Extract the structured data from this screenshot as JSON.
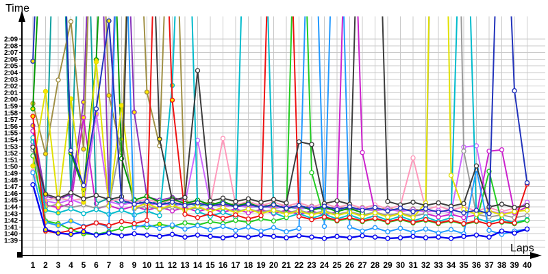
{
  "chart_data": {
    "type": "line",
    "title": "",
    "ylabel": "Time",
    "xlabel": "Laps",
    "grid": true,
    "legend": "none",
    "x_range": [
      1,
      40
    ],
    "y_axis_format": "m:ss",
    "y_ticks": [
      "2:09",
      "2:08",
      "2:07",
      "2:06",
      "2:05",
      "2:04",
      "2:03",
      "2:02",
      "2:01",
      "2:00",
      "1:59",
      "1:58",
      "1:57",
      "1:56",
      "1:55",
      "1:54",
      "1:53",
      "1:52",
      "1:51",
      "1:50",
      "1:49",
      "1:48",
      "1:47",
      "1:46",
      "1:45",
      "1:44",
      "1:43",
      "1:42",
      "1:41",
      "1:40",
      "1:39"
    ],
    "x_ticks": [
      1,
      2,
      3,
      4,
      5,
      6,
      7,
      8,
      9,
      10,
      11,
      12,
      13,
      14,
      15,
      16,
      17,
      18,
      19,
      20,
      21,
      22,
      23,
      24,
      25,
      26,
      27,
      28,
      29,
      30,
      31,
      32,
      33,
      34,
      35,
      36,
      37,
      38,
      39,
      40
    ],
    "marker_fill_normal": "#ffffff",
    "marker_fill_caution": "#ffe600",
    "grid_color": "#c8c8c8",
    "axis_color": "#000000",
    "series": [
      {
        "id": "s1",
        "color": "#11a0a0",
        "yellow_laps": [
          2,
          3,
          5
        ],
        "values": [
          113.7,
          104.7,
          170,
          105.7,
          168,
          104.5,
          105.3,
          104.4,
          105.1,
          104.3,
          104.9,
          104.2,
          104.7,
          104.1,
          104.5,
          104.0,
          104.3,
          103.9,
          104.1,
          103.8,
          104.0,
          103.7,
          103.9,
          103.6,
          103.8,
          103.5,
          103.7,
          103.4,
          null,
          null,
          null,
          null,
          null,
          null,
          null,
          null,
          null,
          null,
          null,
          null
        ]
      },
      {
        "id": "s2",
        "color": "#8833bb",
        "yellow_laps": [
          1,
          5,
          6,
          8,
          9
        ],
        "values": [
          116.1,
          105.6,
          105.1,
          105.9,
          119.6,
          172,
          105.3,
          168,
          118.1,
          105.5,
          105.0,
          105.4,
          104.9,
          null,
          null,
          null,
          null,
          null,
          null,
          null,
          null,
          null,
          null,
          null,
          null,
          null,
          null,
          null,
          null,
          null,
          null,
          null,
          null,
          null,
          null,
          null,
          null,
          null,
          null,
          null
        ]
      },
      {
        "id": "s3",
        "color": "#a09045",
        "yellow_laps": [
          1,
          2,
          5,
          7,
          10
        ],
        "values": [
          119.4,
          111.9,
          122.9,
          131.6,
          112.6,
          170,
          120.6,
          112.1,
          168,
          121.1,
          113.1,
          167,
          104.9,
          104.3,
          104.7,
          104.1,
          104.5,
          104.0,
          104.4,
          103.9,
          104.2,
          103.8,
          104.1,
          103.7,
          104.0,
          103.6,
          103.9,
          103.5,
          103.8,
          103.4,
          103.7,
          103.3,
          null,
          null,
          null,
          null,
          null,
          null,
          null,
          null
        ]
      },
      {
        "id": "s4",
        "color": "#ff99bb",
        "yellow_laps": [
          2,
          5,
          6
        ],
        "values": [
          109.3,
          105.0,
          105.4,
          104.9,
          105.3,
          117.7,
          104.8,
          105.2,
          104.7,
          105.1,
          104.6,
          105.0,
          104.5,
          104.9,
          104.4,
          114.2,
          104.3,
          104.8,
          104.2,
          104.7,
          104.1,
          104.6,
          104.0,
          104.5,
          103.9,
          104.4,
          103.8,
          104.3,
          103.7,
          104.2,
          111.3,
          103.6,
          104.1,
          103.5,
          104.0,
          103.4,
          103.9,
          103.3,
          103.8,
          104.3
        ]
      },
      {
        "id": "s5",
        "color": "#cc66ff",
        "yellow_laps": [
          2,
          3,
          6
        ],
        "values": [
          113.1,
          104.9,
          104.5,
          105.1,
          104.4,
          117.9,
          104.8,
          104.3,
          104.7,
          104.2,
          104.6,
          104.1,
          104.5,
          113.9,
          104.4,
          104.0,
          104.3,
          103.9,
          104.2,
          103.8,
          104.1,
          103.7,
          104.0,
          103.6,
          103.9,
          103.5,
          103.8,
          103.4,
          103.7,
          103.3,
          103.6,
          103.2,
          103.5,
          103.1,
          112.9,
          113.1,
          103.4,
          103.0,
          103.3,
          104.7
        ]
      },
      {
        "id": "s6",
        "color": "#cc22cc",
        "yellow_laps": [
          2,
          3,
          5
        ],
        "values": [
          115.3,
          104.3,
          103.9,
          104.5,
          117.3,
          103.7,
          104.2,
          103.6,
          104.1,
          103.5,
          104.0,
          103.4,
          103.9,
          103.3,
          103.8,
          103.2,
          103.7,
          103.1,
          103.6,
          103.0,
          103.5,
          102.9,
          103.4,
          102.8,
          103.3,
          170,
          112.1,
          103.2,
          102.7,
          103.1,
          102.6,
          103.0,
          102.5,
          102.9,
          102.4,
          102.8,
          112.3,
          112.5,
          103.1,
          104.0
        ]
      },
      {
        "id": "s7",
        "color": "#9a9a9a",
        "yellow_laps": [
          2,
          3,
          8
        ],
        "values": [
          112.5,
          104.0,
          104.4,
          103.9,
          104.3,
          103.8,
          104.2,
          114.1,
          103.7,
          104.1,
          103.6,
          104.0,
          103.5,
          103.9,
          103.4,
          103.8,
          103.3,
          103.7,
          103.2,
          103.6,
          103.1,
          103.5,
          103.0,
          103.4,
          102.9,
          103.3,
          102.8,
          103.2,
          102.7,
          103.1,
          102.6,
          103.0,
          212,
          215,
          112.3,
          102.9,
          102.5,
          102.8,
          102.4,
          102.7
        ]
      },
      {
        "id": "s8",
        "color": "#009900",
        "yellow_laps": [
          1,
          2,
          4,
          5,
          6
        ],
        "values": [
          118.6,
          158,
          171,
          112.0,
          106.6,
          125.9,
          168,
          111.2,
          105.0,
          105.6,
          104.7,
          105.2,
          104.5,
          105.0,
          104.3,
          104.8,
          104.1,
          104.6,
          103.9,
          104.4,
          103.7,
          104.2,
          103.5,
          104.0,
          103.3,
          103.8,
          103.1,
          null,
          null,
          null,
          null,
          null,
          null,
          null,
          null,
          null,
          null,
          null,
          null,
          null
        ]
      },
      {
        "id": "s9",
        "color": "#00bbcc",
        "yellow_laps": [
          2,
          3,
          12,
          13
        ],
        "values": [
          114.3,
          103.5,
          103.1,
          103.7,
          103.0,
          103.6,
          102.9,
          103.5,
          102.8,
          103.4,
          102.7,
          122.1,
          170,
          103.3,
          102.6,
          103.2,
          102.5,
          171,
          168,
          103.1,
          102.4,
          103.0,
          102.3,
          102.9,
          102.2,
          102.8,
          102.1,
          102.7,
          102.0,
          102.6,
          101.9,
          102.5,
          101.8,
          102.4,
          167,
          102.3,
          101.7,
          102.2,
          101.6,
          102.1
        ]
      },
      {
        "id": "s10",
        "color": "#22cc22",
        "yellow_laps": [
          2,
          3,
          4,
          5,
          6,
          7,
          11,
          12
        ],
        "values": [
          111.6,
          101.9,
          101.5,
          100.6,
          100.0,
          99.9,
          100.3,
          100.8,
          101.2,
          101.0,
          101.4,
          101.1,
          101.6,
          101.3,
          101.8,
          101.5,
          102.0,
          101.7,
          102.2,
          101.9,
          102.4,
          173,
          109.1,
          102.3,
          101.9,
          102.3,
          101.8,
          102.2,
          101.7,
          102.1,
          101.6,
          102.0,
          101.5,
          101.9,
          101.4,
          101.8,
          109.3,
          101.7,
          101.5,
          102.0
        ]
      },
      {
        "id": "s11",
        "color": "#e0e000",
        "yellow_laps": [
          1,
          2,
          4,
          5,
          6,
          8
        ],
        "values": [
          110.1,
          121.2,
          104.3,
          120.1,
          104.7,
          125.6,
          104.1,
          119.1,
          103.9,
          104.5,
          103.7,
          104.3,
          103.5,
          104.1,
          103.3,
          103.9,
          103.1,
          103.7,
          103.0,
          103.5,
          102.9,
          103.4,
          102.8,
          103.3,
          102.7,
          103.2,
          102.6,
          103.1,
          102.5,
          103.0,
          102.4,
          104.6,
          216,
          108.7,
          103.6,
          102.9,
          103.4,
          102.8,
          103.3,
          103.5
        ]
      },
      {
        "id": "s12",
        "color": "#2299ff",
        "yellow_laps": [
          2,
          3,
          4,
          5
        ],
        "values": [
          109.1,
          101.7,
          101.2,
          101.9,
          101.1,
          101.6,
          101.0,
          166,
          100.9,
          101.4,
          100.8,
          101.3,
          100.7,
          101.2,
          100.6,
          101.1,
          100.5,
          101.0,
          100.4,
          100.9,
          100.3,
          100.8,
          167,
          101.1,
          169,
          101.0,
          100.4,
          100.9,
          100.3,
          100.8,
          100.2,
          100.7,
          100.1,
          100.6,
          100.0,
          109.6,
          100.5,
          99.9,
          100.4,
          100.7
        ]
      },
      {
        "id": "s13",
        "color": "#ee1111",
        "yellow_laps": [
          1,
          2,
          3,
          11,
          12
        ],
        "values": [
          117.5,
          100.4,
          100.1,
          100.5,
          101.0,
          101.6,
          101.2,
          101.8,
          101.5,
          102.0,
          171,
          119.9,
          102.9,
          102.4,
          103.0,
          102.3,
          102.8,
          102.2,
          102.7,
          169,
          167,
          102.6,
          102.1,
          102.5,
          102.0,
          102.4,
          101.9,
          102.3,
          101.8,
          102.2,
          101.7,
          102.1,
          101.6,
          102.0,
          101.5,
          101.9,
          101.4,
          101.8,
          101.6,
          107.4
        ]
      },
      {
        "id": "s14",
        "color": "#3c3c3c",
        "yellow_laps": [
          2,
          9,
          10,
          11
        ],
        "values": [
          112.9,
          105.9,
          105.3,
          106.1,
          105.2,
          105.7,
          105.1,
          105.5,
          171,
          172,
          114.1,
          105.0,
          105.4,
          124.3,
          104.9,
          105.3,
          104.8,
          105.2,
          104.7,
          105.1,
          104.6,
          113.7,
          113.3,
          104.5,
          104.9,
          104.4,
          171,
          172,
          104.8,
          104.3,
          104.7,
          104.2,
          104.6,
          104.1,
          104.5,
          110.1,
          104.0,
          104.4,
          103.9,
          104.2
        ]
      },
      {
        "id": "s15",
        "color": "#2233bb",
        "yellow_laps": [
          1,
          2,
          3,
          7
        ],
        "values": [
          125.7,
          172,
          169,
          112.4,
          107.2,
          118.6,
          131.7,
          105.0,
          104.4,
          104.8,
          104.3,
          104.7,
          104.2,
          104.6,
          104.1,
          104.5,
          104.0,
          104.4,
          103.9,
          104.3,
          103.8,
          104.2,
          103.7,
          104.1,
          103.6,
          104.0,
          103.5,
          103.9,
          103.4,
          103.8,
          103.3,
          103.7,
          103.2,
          103.6,
          103.1,
          103.5,
          103.0,
          167,
          121.3,
          107.6
        ]
      },
      {
        "id": "s16",
        "color": "#0000ee",
        "yellow_laps": [
          2,
          3,
          4,
          5
        ],
        "values": [
          107.3,
          100.6,
          100.1,
          99.9,
          100.3,
          99.8,
          100.1,
          99.7,
          100.0,
          99.8,
          99.6,
          99.9,
          99.5,
          99.8,
          99.6,
          99.4,
          99.7,
          99.5,
          99.8,
          99.6,
          99.4,
          99.7,
          99.5,
          99.3,
          99.6,
          99.4,
          99.7,
          99.5,
          99.3,
          99.4,
          99.6,
          99.4,
          99.5,
          99.3,
          99.6,
          99.8,
          99.5,
          100.4,
          100.1,
          100.7
        ]
      }
    ]
  }
}
